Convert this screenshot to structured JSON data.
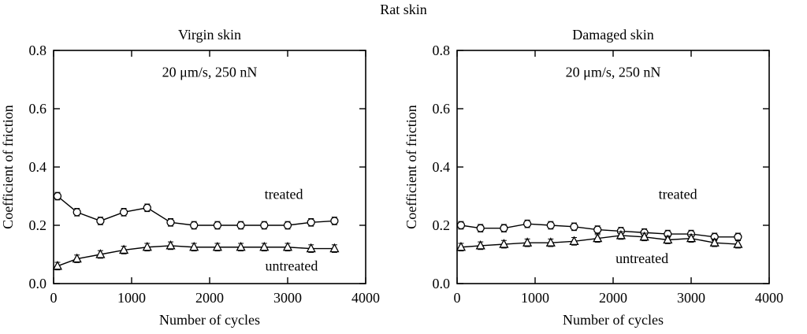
{
  "figure": {
    "title": "Rat skin"
  },
  "chart_data": [
    {
      "type": "line",
      "title": "Virgin skin",
      "annotation": "20 μm/s, 250 nN",
      "annotation_pos": {
        "x": 2000,
        "y": 0.71
      },
      "xlabel": "Number of cycles",
      "ylabel": "Coefficient of friction",
      "xlim": [
        0,
        4000
      ],
      "ylim": [
        0,
        0.8
      ],
      "xticks": [
        0,
        1000,
        2000,
        3000,
        4000
      ],
      "xtick_labels": [
        "0",
        "1000",
        "2000",
        "3000",
        "4000"
      ],
      "yticks": [
        0,
        0.2,
        0.4,
        0.6,
        0.8
      ],
      "ytick_labels": [
        "0.0",
        "0.2",
        "0.4",
        "0.6",
        "0.8"
      ],
      "x": [
        50,
        300,
        600,
        900,
        1200,
        1500,
        1800,
        2100,
        2400,
        2700,
        3000,
        3300,
        3600
      ],
      "grid": false,
      "legend_position": "in-plot-text",
      "series": [
        {
          "name": "treated",
          "marker": "circle",
          "error": 0.013,
          "values": [
            0.3,
            0.245,
            0.215,
            0.245,
            0.26,
            0.21,
            0.2,
            0.2,
            0.2,
            0.2,
            0.2,
            0.21,
            0.215
          ],
          "label": {
            "text": "treated",
            "x": 2950,
            "y": 0.29
          }
        },
        {
          "name": "untreated",
          "marker": "triangle",
          "error": 0.013,
          "values": [
            0.06,
            0.085,
            0.1,
            0.115,
            0.125,
            0.13,
            0.125,
            0.125,
            0.125,
            0.125,
            0.125,
            0.12,
            0.12
          ],
          "label": {
            "text": "untreated",
            "x": 3050,
            "y": 0.045
          }
        }
      ]
    },
    {
      "type": "line",
      "title": "Damaged skin",
      "annotation": "20 μm/s, 250 nN",
      "annotation_pos": {
        "x": 2000,
        "y": 0.71
      },
      "xlabel": "Number of cycles",
      "ylabel": "Coefficient of friction",
      "xlim": [
        0,
        4000
      ],
      "ylim": [
        0,
        0.8
      ],
      "xticks": [
        0,
        1000,
        2000,
        3000,
        4000
      ],
      "xtick_labels": [
        "0",
        "1000",
        "2000",
        "3000",
        "4000"
      ],
      "yticks": [
        0,
        0.2,
        0.4,
        0.6,
        0.8
      ],
      "ytick_labels": [
        "0.0",
        "0.2",
        "0.4",
        "0.6",
        "0.8"
      ],
      "x": [
        50,
        300,
        600,
        900,
        1200,
        1500,
        1800,
        2100,
        2400,
        2700,
        3000,
        3300,
        3600
      ],
      "grid": false,
      "legend_position": "in-plot-text",
      "series": [
        {
          "name": "treated",
          "marker": "circle",
          "error": 0.013,
          "values": [
            0.2,
            0.19,
            0.19,
            0.205,
            0.2,
            0.195,
            0.185,
            0.18,
            0.175,
            0.17,
            0.17,
            0.16,
            0.16
          ],
          "label": {
            "text": "treated",
            "x": 2830,
            "y": 0.29
          }
        },
        {
          "name": "untreated",
          "marker": "triangle",
          "error": 0.013,
          "values": [
            0.125,
            0.13,
            0.135,
            0.14,
            0.14,
            0.145,
            0.155,
            0.165,
            0.16,
            0.15,
            0.155,
            0.14,
            0.135
          ],
          "label": {
            "text": "untreated",
            "x": 2370,
            "y": 0.07
          }
        }
      ]
    }
  ]
}
